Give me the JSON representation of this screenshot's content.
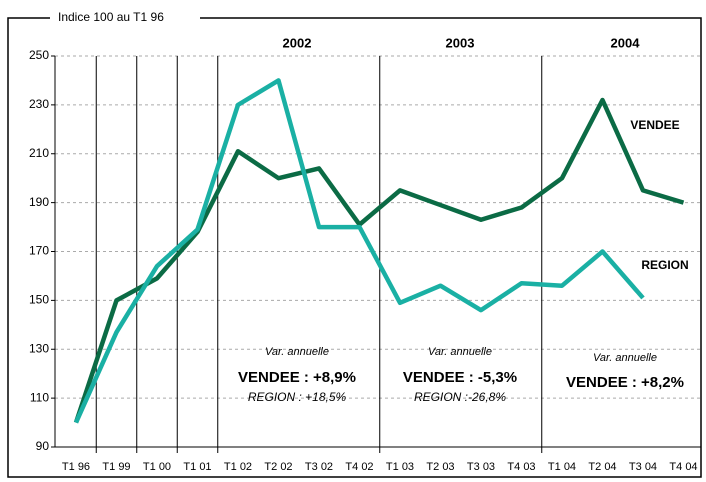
{
  "chart_data": {
    "type": "line",
    "y_label": "Indice 100 au T1 96",
    "categories": [
      "T1 96",
      "T1 99",
      "T1 00",
      "T1 01",
      "T1 02",
      "T2 02",
      "T3 02",
      "T4 02",
      "T1 03",
      "T2 03",
      "T3 03",
      "T4 03",
      "T1 04",
      "T2 04",
      "T3 04",
      "T4 04"
    ],
    "series": [
      {
        "name": "VENDEE",
        "color": "#0b6b45",
        "values": [
          100,
          150,
          159,
          178,
          211,
          200,
          204,
          181,
          195,
          189,
          183,
          188,
          200,
          232,
          195,
          190
        ]
      },
      {
        "name": "REGION",
        "color": "#1ab0a4",
        "values": [
          100,
          137,
          164,
          179,
          230,
          240,
          180,
          180,
          149,
          156,
          146,
          157,
          156,
          170,
          151,
          null
        ]
      }
    ],
    "ylim": [
      90,
      250
    ],
    "yticks": [
      90,
      110,
      130,
      150,
      170,
      190,
      210,
      230,
      250
    ],
    "grid": true,
    "periods": [
      "2002",
      "2003",
      "2004"
    ],
    "annotations": [
      [
        "Var. annuelle",
        "VENDEE : +8,9%",
        "REGION : +18,5%"
      ],
      [
        "Var. annuelle",
        "VENDEE : -5,3%",
        "REGION :-26,8%"
      ],
      [
        "Var. annuelle",
        "VENDEE : +8,2%"
      ]
    ]
  }
}
